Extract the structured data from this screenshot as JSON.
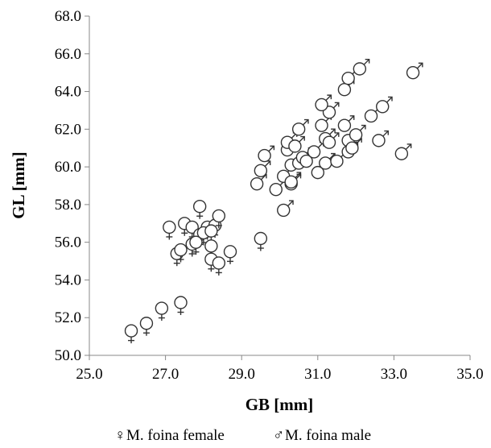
{
  "chart_data": {
    "type": "scatter",
    "title": "",
    "xlabel": "GB [mm]",
    "ylabel": "GL [mm]",
    "xlim": [
      25.0,
      35.0
    ],
    "ylim": [
      50.0,
      68.0
    ],
    "xticks": [
      "25.0",
      "27.0",
      "29.0",
      "31.0",
      "33.0",
      "35.0"
    ],
    "xtick_values": [
      25,
      27,
      29,
      31,
      33,
      35
    ],
    "yticks": [
      "50.0",
      "52.0",
      "54.0",
      "56.0",
      "58.0",
      "60.0",
      "62.0",
      "64.0",
      "66.0",
      "68.0"
    ],
    "ytick_values": [
      50,
      52,
      54,
      56,
      58,
      60,
      62,
      64,
      66,
      68
    ],
    "grid": false,
    "legend_position": "bottom",
    "series": [
      {
        "name": "M. foina female",
        "symbol": "♀",
        "color": "#333333",
        "points": [
          {
            "x": 26.1,
            "y": 51.3
          },
          {
            "x": 26.5,
            "y": 51.7
          },
          {
            "x": 26.9,
            "y": 52.5
          },
          {
            "x": 27.4,
            "y": 52.8
          },
          {
            "x": 27.1,
            "y": 56.8
          },
          {
            "x": 27.5,
            "y": 57.0
          },
          {
            "x": 27.7,
            "y": 56.8
          },
          {
            "x": 27.9,
            "y": 57.9
          },
          {
            "x": 28.1,
            "y": 56.8
          },
          {
            "x": 28.3,
            "y": 56.9
          },
          {
            "x": 28.4,
            "y": 57.4
          },
          {
            "x": 27.9,
            "y": 56.4
          },
          {
            "x": 28.0,
            "y": 56.5
          },
          {
            "x": 28.2,
            "y": 56.6
          },
          {
            "x": 27.7,
            "y": 55.9
          },
          {
            "x": 27.8,
            "y": 56.0
          },
          {
            "x": 27.3,
            "y": 55.4
          },
          {
            "x": 27.4,
            "y": 55.6
          },
          {
            "x": 28.2,
            "y": 55.8
          },
          {
            "x": 28.2,
            "y": 55.1
          },
          {
            "x": 28.4,
            "y": 54.9
          },
          {
            "x": 28.7,
            "y": 55.5
          },
          {
            "x": 29.5,
            "y": 56.2
          }
        ]
      },
      {
        "name": "M. foina male",
        "symbol": "♂",
        "color": "#333333",
        "points": [
          {
            "x": 29.9,
            "y": 58.8
          },
          {
            "x": 30.1,
            "y": 57.7
          },
          {
            "x": 29.4,
            "y": 59.1
          },
          {
            "x": 29.5,
            "y": 59.8
          },
          {
            "x": 29.6,
            "y": 60.6
          },
          {
            "x": 30.1,
            "y": 59.5
          },
          {
            "x": 30.3,
            "y": 59.1
          },
          {
            "x": 30.3,
            "y": 59.2
          },
          {
            "x": 30.2,
            "y": 60.9
          },
          {
            "x": 30.2,
            "y": 61.3
          },
          {
            "x": 30.4,
            "y": 61.1
          },
          {
            "x": 30.3,
            "y": 60.1
          },
          {
            "x": 30.5,
            "y": 60.2
          },
          {
            "x": 30.6,
            "y": 60.5
          },
          {
            "x": 30.7,
            "y": 60.3
          },
          {
            "x": 30.5,
            "y": 62.0
          },
          {
            "x": 30.9,
            "y": 60.8
          },
          {
            "x": 31.0,
            "y": 59.7
          },
          {
            "x": 31.2,
            "y": 60.2
          },
          {
            "x": 31.5,
            "y": 60.3
          },
          {
            "x": 31.2,
            "y": 61.5
          },
          {
            "x": 31.3,
            "y": 61.3
          },
          {
            "x": 31.1,
            "y": 62.2
          },
          {
            "x": 31.3,
            "y": 62.9
          },
          {
            "x": 31.1,
            "y": 63.3
          },
          {
            "x": 31.7,
            "y": 62.2
          },
          {
            "x": 31.8,
            "y": 61.4
          },
          {
            "x": 31.8,
            "y": 60.8
          },
          {
            "x": 31.9,
            "y": 61.0
          },
          {
            "x": 32.0,
            "y": 61.7
          },
          {
            "x": 31.7,
            "y": 64.1
          },
          {
            "x": 31.8,
            "y": 64.7
          },
          {
            "x": 32.1,
            "y": 65.2
          },
          {
            "x": 32.4,
            "y": 62.7
          },
          {
            "x": 32.7,
            "y": 63.2
          },
          {
            "x": 32.6,
            "y": 61.4
          },
          {
            "x": 33.2,
            "y": 60.7
          },
          {
            "x": 33.5,
            "y": 65.0
          }
        ]
      }
    ]
  }
}
